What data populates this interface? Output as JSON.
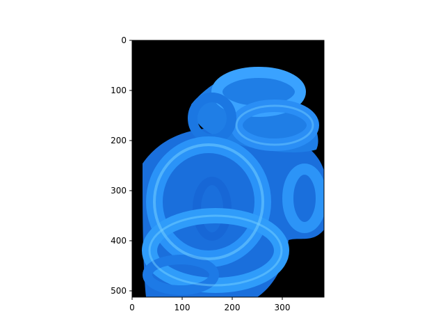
{
  "image_axes": {
    "x_ticks": [
      "0",
      "100",
      "200",
      "300"
    ],
    "y_ticks": [
      "0",
      "100",
      "200",
      "300",
      "400",
      "500"
    ],
    "x_range": [
      0,
      383
    ],
    "y_range": [
      0,
      512
    ],
    "y_inverted": true
  },
  "colors": {
    "background": "#000000",
    "ring_main": "#1e7fe8",
    "ring_light": "#4fb4ff",
    "ring_dark": "#0a3fb0"
  },
  "subject": "blue-tinted onion rings on black background"
}
